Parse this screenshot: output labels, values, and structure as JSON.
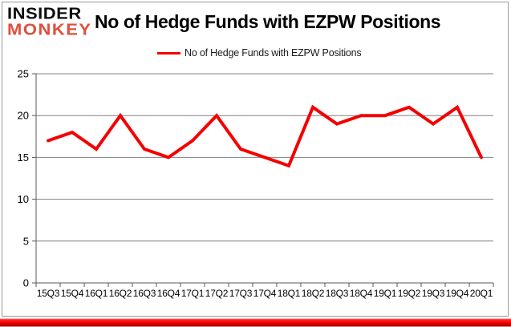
{
  "logo": {
    "line1": "INSIDER",
    "line2": "MONKEY"
  },
  "header": {
    "title": "No of Hedge Funds with EZPW Positions"
  },
  "legend": {
    "label": "No of Hedge Funds with EZPW Positions"
  },
  "colors": {
    "series": "#f40000",
    "gridline": "#808080",
    "axis": "#595959",
    "tick_text": "#000000",
    "logo_black": "#0d0d0d",
    "logo_red": "#df4f3d",
    "bottom_bar": "#f40000",
    "frame_border": "#999999",
    "background": "#ffffff"
  },
  "chart_data": {
    "type": "line",
    "title": "No of Hedge Funds with EZPW Positions",
    "categories": [
      "15Q3",
      "15Q4",
      "16Q1",
      "16Q2",
      "16Q3",
      "16Q4",
      "17Q1",
      "17Q2",
      "17Q3",
      "17Q4",
      "18Q1",
      "18Q2",
      "18Q3",
      "18Q4",
      "19Q1",
      "19Q2",
      "19Q3",
      "19Q4",
      "20Q1"
    ],
    "values": [
      17,
      18,
      16,
      20,
      16,
      15,
      17,
      20,
      16,
      15,
      14,
      21,
      19,
      20,
      20,
      21,
      19,
      21,
      15
    ],
    "series": [
      {
        "name": "No of Hedge Funds with EZPW Positions",
        "values": [
          17,
          18,
          16,
          20,
          16,
          15,
          17,
          20,
          16,
          15,
          14,
          21,
          19,
          20,
          20,
          21,
          19,
          21,
          15
        ]
      }
    ],
    "xlabel": "",
    "ylabel": "",
    "ylim": [
      0,
      25
    ],
    "yticks": [
      0,
      5,
      10,
      15,
      20,
      25
    ],
    "grid": true,
    "legend_position": "top"
  }
}
